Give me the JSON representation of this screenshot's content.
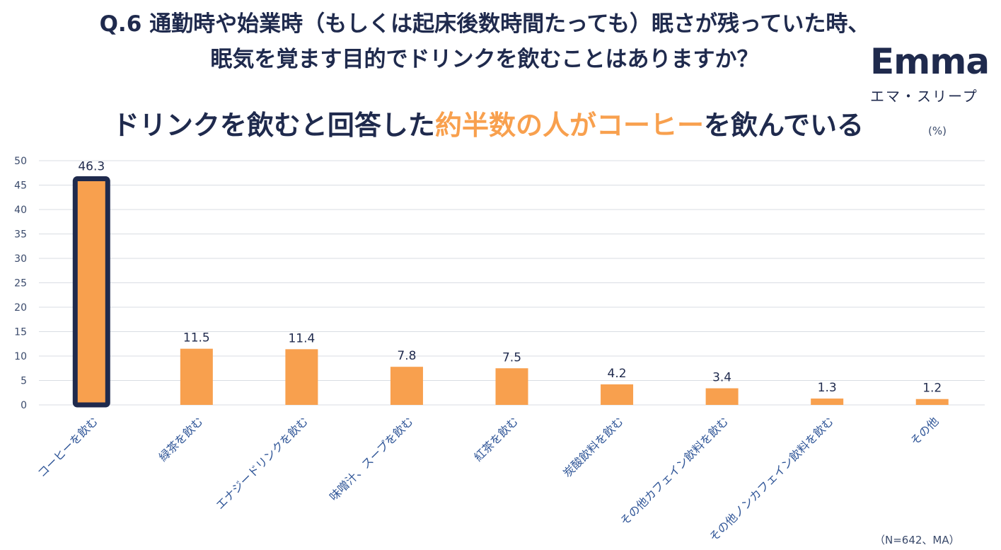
{
  "question": {
    "line1": "Q.6 通勤時や始業時（もしくは起床後数時間たっても）眠さが残っていた時、",
    "line2": "眠気を覚ます目的でドリンクを飲むことはありますか？"
  },
  "headline": {
    "part1": "ドリンクを飲むと回答した",
    "highlight": "約半数の人がコーヒー",
    "part2": "を飲んでいる"
  },
  "logo": {
    "word": "Emma",
    "sub": "エマ・スリープ"
  },
  "unit": "(%)",
  "note": "（N=642、MA）",
  "colors": {
    "bar": "#f8a04e",
    "highlight_border": "#1f2a4d",
    "text": "#1f2a4d",
    "grid": "#d9dde3"
  },
  "chart_data": {
    "type": "bar",
    "categories": [
      "コーヒーを飲む",
      "緑茶を飲む",
      "エナジードリンクを飲む",
      "味噌汁、スープを飲む",
      "紅茶を飲む",
      "炭酸飲料を飲む",
      "その他カフェイン飲料を飲む",
      "その他ノンカフェイン飲料を飲む",
      "その他"
    ],
    "values": [
      46.3,
      11.5,
      11.4,
      7.8,
      7.5,
      4.2,
      3.4,
      1.3,
      1.2
    ],
    "value_labels": [
      "46.3",
      "11.5",
      "11.4",
      "7.8",
      "7.5",
      "4.2",
      "3.4",
      "1.3",
      "1.2"
    ],
    "ylim": [
      0,
      50
    ],
    "yticks": [
      0,
      5,
      10,
      15,
      20,
      25,
      30,
      35,
      40,
      45,
      50
    ],
    "highlighted_category": "コーヒーを飲む",
    "grid": true,
    "legend": "none"
  }
}
